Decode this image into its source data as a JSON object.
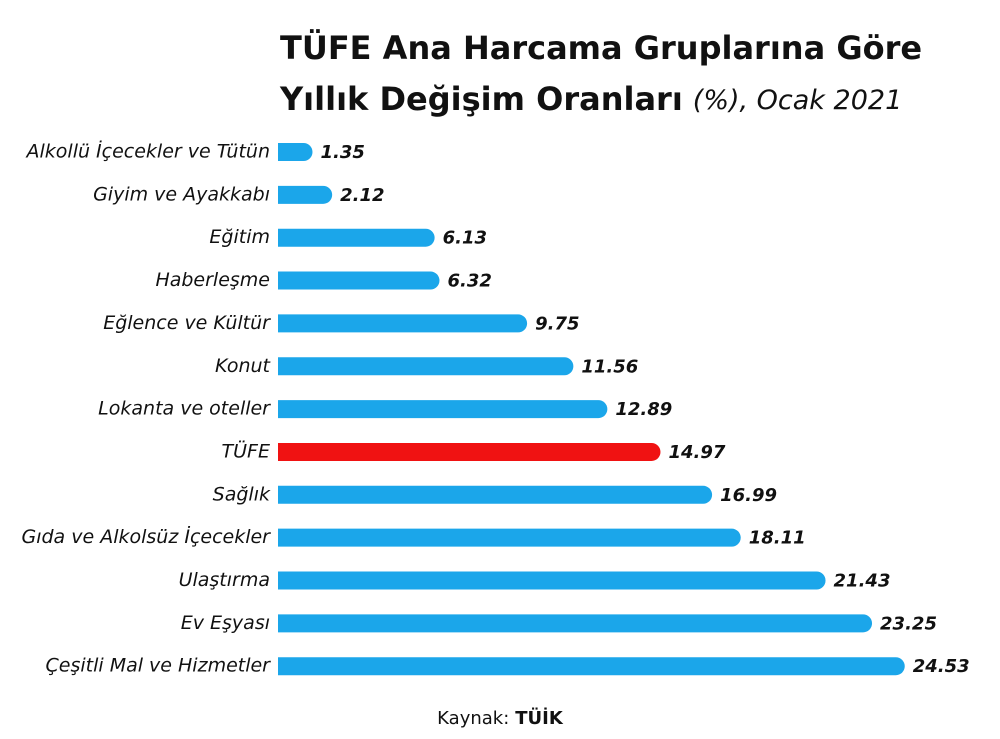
{
  "chart_data": {
    "type": "bar",
    "orientation": "horizontal",
    "title": [
      "TÜFE Ana Harcama Gruplarına Göre",
      "Yıllık Değişim Oranları"
    ],
    "subtitle": "(%), Ocak 2021",
    "categories": [
      "Alkollü İçecekler ve Tütün",
      "Giyim ve Ayakkabı",
      "Eğitim",
      "Haberleşme",
      "Eğlence ve Kültür",
      "Konut",
      "Lokanta ve oteller",
      "TÜFE",
      "Sağlık",
      "Gıda ve Alkolsüz İçecekler",
      "Ulaştırma",
      "Ev Eşyası",
      "Çeşitli Mal ve Hizmetler"
    ],
    "values": [
      1.35,
      2.12,
      6.13,
      6.32,
      9.75,
      11.56,
      12.89,
      14.97,
      16.99,
      18.11,
      21.43,
      23.25,
      24.53
    ],
    "colors": [
      "#1ba6ea",
      "#1ba6ea",
      "#1ba6ea",
      "#1ba6ea",
      "#1ba6ea",
      "#1ba6ea",
      "#1ba6ea",
      "#f01212",
      "#1ba6ea",
      "#1ba6ea",
      "#1ba6ea",
      "#1ba6ea",
      "#1ba6ea"
    ],
    "source_label": "Kaynak:",
    "source": "TÜİK"
  }
}
